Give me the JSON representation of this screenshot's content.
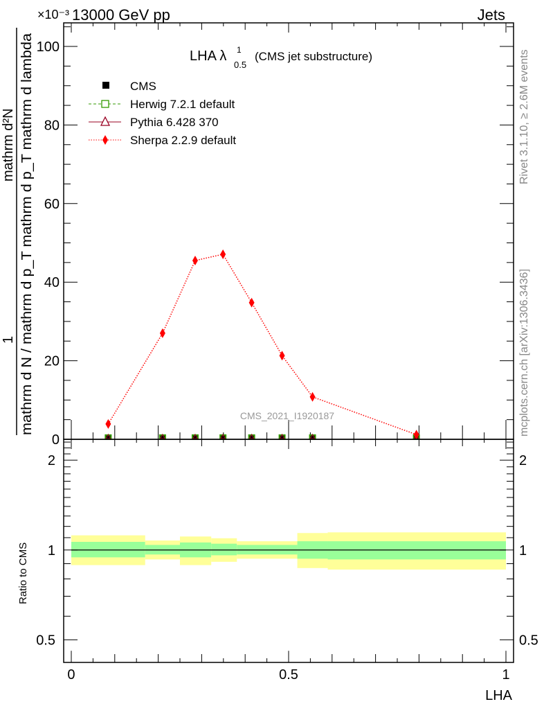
{
  "chart_data": [
    {
      "type": "line",
      "panel": "main",
      "title": "LHA",
      "title_sub": "0.5",
      "title_sup": "1",
      "title_suffix": "(CMS jet substructure)",
      "header_left": "13000 GeV pp",
      "header_right": "Jets",
      "exponent_label": "×10⁻³",
      "ylabel_numerator_top": "mathrm d²N",
      "ylabel_numerator": "1",
      "ylabel_denominator": "mathrm d N / mathrm d p_T mathrm d p_T mathrm d lambda",
      "ylim": [
        0,
        106
      ],
      "xlim": [
        -0.0175,
        1.0175
      ],
      "yticks": [
        "0",
        "20",
        "40",
        "60",
        "80",
        "100"
      ],
      "ytick_values": [
        0,
        20,
        40,
        60,
        80,
        100
      ],
      "watermark": "CMS_2021_I1920187",
      "side_text_top": "Rivet 3.1.10, ≥ 2.6M events",
      "side_text_bottom": "mcplots.cern.ch [arXiv:1306.3436]",
      "legend_position": "top-left",
      "x": [
        0.085,
        0.21,
        0.285,
        0.349,
        0.415,
        0.485,
        0.555,
        0.794
      ],
      "series": [
        {
          "name": "CMS",
          "color": "#000000",
          "marker": "filled-square",
          "values": [
            0.2,
            0.2,
            0.2,
            0.2,
            0.2,
            0.2,
            0.2,
            0.2
          ]
        },
        {
          "name": "Herwig 7.2.1 default",
          "color": "#339900",
          "marker": "open-square",
          "line": "dashed",
          "values": [
            0.2,
            0.2,
            0.2,
            0.2,
            0.2,
            0.2,
            0.2,
            0.2
          ]
        },
        {
          "name": "Pythia 6.428 370",
          "color": "#990022",
          "marker": "open-triangle",
          "line": "solid",
          "values": [
            0.2,
            0.2,
            0.2,
            0.2,
            0.2,
            0.2,
            0.2,
            0.2
          ]
        },
        {
          "name": "Sherpa 2.2.9 default",
          "color": "#ff0000",
          "marker": "filled-diamond",
          "line": "dotted",
          "values": [
            3.9,
            27.0,
            45.5,
            47.1,
            34.8,
            21.3,
            10.8,
            1.2
          ]
        }
      ]
    },
    {
      "type": "area",
      "panel": "ratio",
      "ylabel": "Ratio to CMS",
      "xlabel": "LHA",
      "yscale": "log",
      "ylim": [
        0.42,
        2.35
      ],
      "xlim": [
        -0.0175,
        1.0175
      ],
      "yticks": [
        "0.5",
        "1",
        "2"
      ],
      "ytick_values": [
        0.5,
        1,
        2
      ],
      "xticks": [
        "0",
        "0.5",
        "1"
      ],
      "xtick_values": [
        0,
        0.5,
        1
      ],
      "bin_edges": [
        0,
        0.17,
        0.25,
        0.322,
        0.381,
        0.52,
        0.59,
        1.0
      ],
      "stat_band": {
        "color": "#99ff99",
        "low": [
          0.945,
          0.966,
          0.945,
          0.96,
          0.966,
          0.935,
          0.93
        ],
        "high": [
          1.065,
          1.04,
          1.06,
          1.05,
          1.04,
          1.07,
          1.07
        ]
      },
      "total_band": {
        "color": "#ffff99",
        "low": [
          0.89,
          0.93,
          0.89,
          0.913,
          0.935,
          0.87,
          0.86
        ],
        "high": [
          1.12,
          1.076,
          1.11,
          1.095,
          1.07,
          1.14,
          1.146
        ]
      },
      "reference": 1
    }
  ]
}
